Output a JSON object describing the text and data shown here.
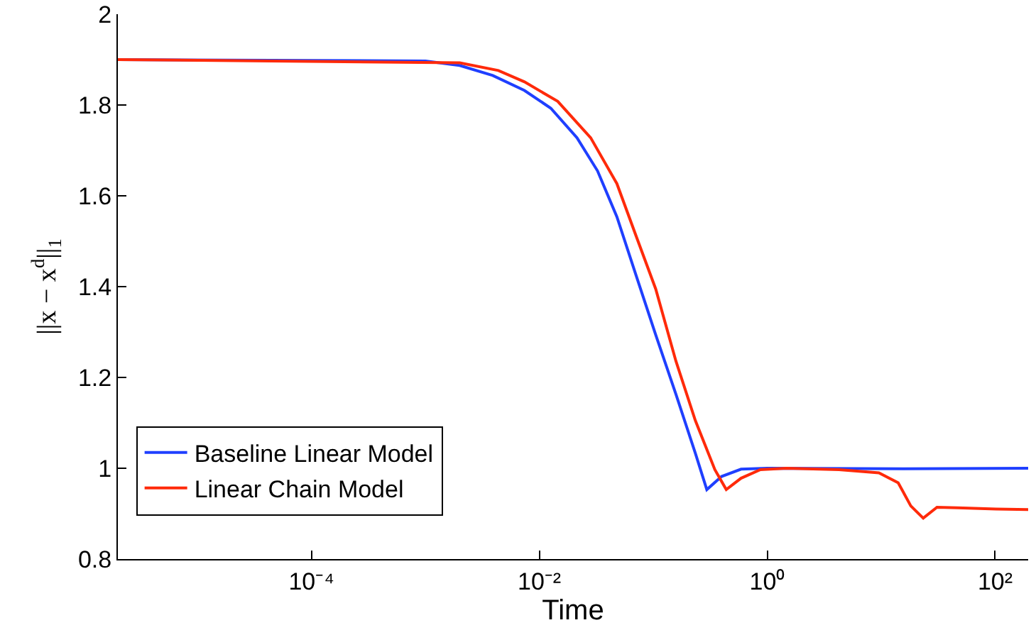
{
  "chart_data": {
    "type": "line",
    "xlabel": "Time",
    "ylabel": "||x − x$^{d}$||$_{1}$",
    "log": "x",
    "xlim": [
      2e-06,
      195
    ],
    "xticks": [
      {
        "value": 0.0001,
        "label": "10⁻⁴"
      },
      {
        "value": 0.01,
        "label": "10⁻²"
      },
      {
        "value": 1,
        "label": "10⁰"
      },
      {
        "value": 100,
        "label": "10²"
      }
    ],
    "ylim": [
      0.8,
      2
    ],
    "yticks": [
      0.8,
      1,
      1.2,
      1.4,
      1.6,
      1.8,
      2
    ],
    "grid": false,
    "legend": "bottom left",
    "line_style": "solid",
    "marker": "none",
    "series": [
      {
        "name": "Baseline Linear Model",
        "color": "#1f3fff",
        "x": [
          2e-06,
          0.001,
          0.002,
          0.0039,
          0.0074,
          0.0126,
          0.0214,
          0.0324,
          0.0479,
          0.0708,
          0.105,
          0.158,
          0.234,
          0.295,
          0.398,
          0.589,
          1,
          15.8,
          195
        ],
        "values": [
          1.9,
          1.897,
          1.887,
          1.865,
          1.832,
          1.793,
          1.728,
          1.655,
          1.554,
          1.424,
          1.294,
          1.163,
          1.033,
          0.953,
          0.982,
          0.998,
          1,
          0.999,
          1
        ]
      },
      {
        "name": "Linear Chain Model",
        "color": "#ff2a0a",
        "x": [
          2e-06,
          0.002,
          0.00437,
          0.0074,
          0.0145,
          0.0282,
          0.0479,
          0.0708,
          0.105,
          0.158,
          0.234,
          0.347,
          0.437,
          0.589,
          0.871,
          1.48,
          4.27,
          9.55,
          14.1,
          18.2,
          23.4,
          30.9,
          46.8,
          102,
          195
        ],
        "values": [
          1.9,
          1.893,
          1.876,
          1.851,
          1.808,
          1.728,
          1.627,
          1.511,
          1.395,
          1.236,
          1.105,
          0.997,
          0.953,
          0.978,
          0.997,
          1,
          0.997,
          0.99,
          0.968,
          0.917,
          0.89,
          0.914,
          0.913,
          0.91,
          0.909
        ]
      }
    ]
  }
}
